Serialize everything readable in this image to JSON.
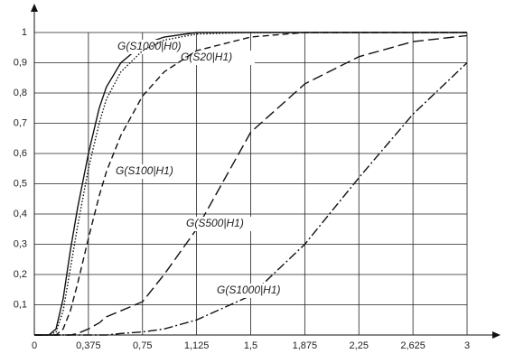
{
  "chart_data": {
    "type": "line",
    "x": [
      0,
      0.1,
      0.15,
      0.2,
      0.25,
      0.3,
      0.375,
      0.45,
      0.5,
      0.6,
      0.75,
      0.9,
      1.125,
      1.5,
      1.875,
      2.25,
      2.625,
      3
    ],
    "series": [
      {
        "name": "G(S1000|H0)",
        "color": "#111",
        "values": [
          0,
          0,
          0.02,
          0.12,
          0.28,
          0.42,
          0.6,
          0.75,
          0.82,
          0.9,
          0.96,
          0.985,
          1,
          1,
          1,
          1,
          1,
          1
        ]
      },
      {
        "name": "G(S20|H1)",
        "color": "#111",
        "values": [
          0,
          0,
          0.01,
          0.08,
          0.22,
          0.36,
          0.55,
          0.7,
          0.78,
          0.87,
          0.94,
          0.975,
          0.995,
          1,
          1,
          1,
          1,
          1
        ]
      },
      {
        "name": "G(S100|H1)",
        "color": "#111",
        "values": [
          0,
          0,
          0,
          0.02,
          0.08,
          0.17,
          0.32,
          0.46,
          0.54,
          0.66,
          0.79,
          0.87,
          0.94,
          0.985,
          1,
          1,
          1,
          1
        ]
      },
      {
        "name": "G(S500|H1)",
        "color": "#111",
        "values": [
          0,
          0,
          0,
          0,
          0,
          0.005,
          0.02,
          0.04,
          0.06,
          0.08,
          0.11,
          0.2,
          0.35,
          0.67,
          0.83,
          0.92,
          0.97,
          0.99
        ]
      },
      {
        "name": "G(S1000|H1)",
        "color": "#111",
        "values": [
          0,
          0,
          0,
          0,
          0,
          0,
          0,
          0,
          0,
          0.005,
          0.01,
          0.02,
          0.05,
          0.13,
          0.3,
          0.52,
          0.73,
          0.9
        ]
      }
    ],
    "xlim": [
      0,
      3
    ],
    "ylim": [
      0,
      1
    ],
    "xticks": [
      0,
      {
        "value": 0.375,
        "label": "0,375"
      },
      {
        "value": 0.75,
        "label": "0,75"
      },
      {
        "value": 1.125,
        "label": "1,125"
      },
      {
        "value": 1.5,
        "label": "1,5"
      },
      {
        "value": 1.875,
        "label": "1,875"
      },
      {
        "value": 2.25,
        "label": "2,25"
      },
      {
        "value": 2.625,
        "label": "2,625"
      },
      3
    ],
    "yticks": [
      {
        "value": 0.1,
        "label": "0,1"
      },
      {
        "value": 0.2,
        "label": "0,2"
      },
      {
        "value": 0.3,
        "label": "0,3"
      },
      {
        "value": 0.4,
        "label": "0,4"
      },
      {
        "value": 0.5,
        "label": "0,5"
      },
      {
        "value": 0.6,
        "label": "0,6"
      },
      {
        "value": 0.7,
        "label": "0,7"
      },
      {
        "value": 0.8,
        "label": "0,8"
      },
      {
        "value": 0.9,
        "label": "0,9"
      },
      1
    ],
    "grid": true
  }
}
